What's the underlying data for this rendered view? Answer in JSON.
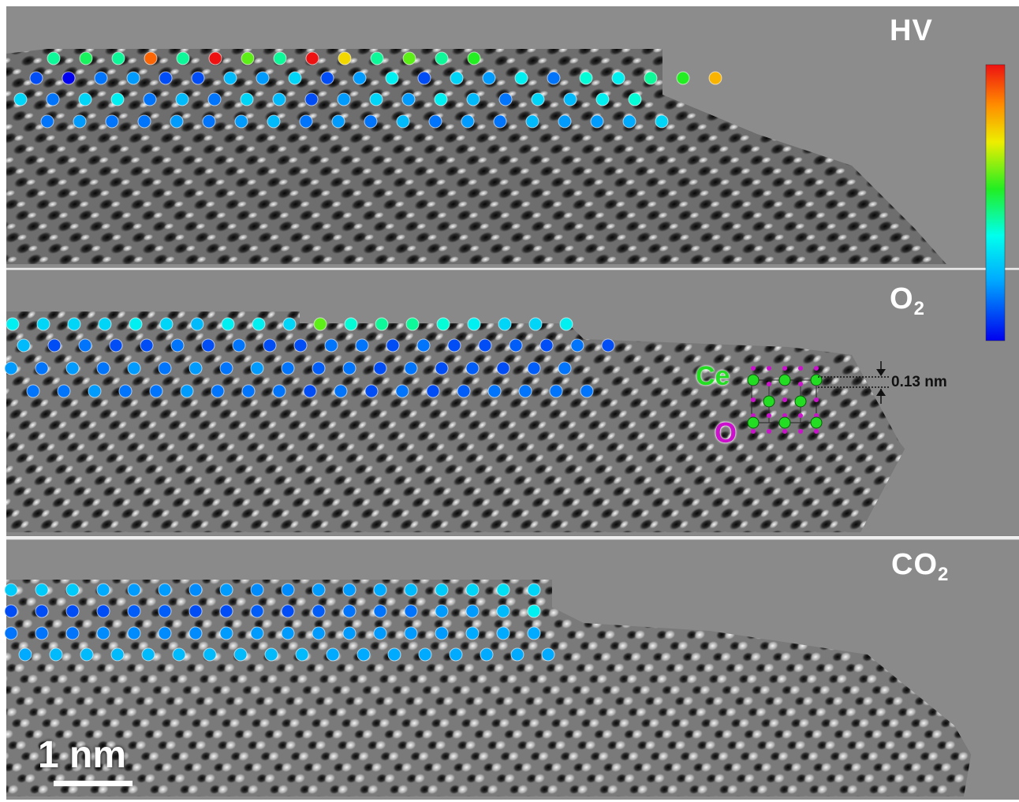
{
  "panels": [
    {
      "id": "hv",
      "label_main": "HV",
      "label_sub": ""
    },
    {
      "id": "o2",
      "label_main": "O",
      "label_sub": "2"
    },
    {
      "id": "co2",
      "label_main": "CO",
      "label_sub": "2"
    }
  ],
  "inset": {
    "ce_label": "Ce",
    "o_label": "O",
    "spacing_label": "0.13 nm"
  },
  "scale_bar": {
    "label": "1 nm"
  },
  "colors": {
    "background": "#8a8a8a",
    "ce_atom": "#22dd22",
    "o_atom": "#cc11cc",
    "colorbar_stops": [
      "#0000ee",
      "#00aaff",
      "#00ffee",
      "#22ee22",
      "#eeee00",
      "#ff8800",
      "#ee1111"
    ]
  },
  "surface_atoms": {
    "hv": [
      [
        0.45,
        0.5,
        0.45,
        0.9,
        0.45,
        1.0,
        0.6,
        0.45,
        1.0,
        0.75,
        0.45,
        0.6,
        0.45,
        0.55
      ],
      [
        0.1,
        0.0,
        0.15,
        0.2,
        0.1,
        0.1,
        0.25,
        0.2,
        0.3,
        0.1,
        0.2,
        0.35,
        0.1,
        0.3,
        0.2,
        0.35,
        0.15,
        0.4,
        0.35,
        0.45,
        0.55,
        0.8
      ],
      [
        0.3,
        0.15,
        0.3,
        0.35,
        0.15,
        0.25,
        0.15,
        0.3,
        0.25,
        0.1,
        0.2,
        0.3,
        0.2,
        0.35,
        0.25,
        0.15,
        0.3,
        0.25,
        0.35,
        0.4
      ],
      [
        0.15,
        0.2,
        0.15,
        0.15,
        0.2,
        0.15,
        0.2,
        0.25,
        0.15,
        0.2,
        0.15,
        0.25,
        0.15,
        0.2,
        0.15,
        0.25,
        0.2,
        0.2,
        0.22,
        0.3
      ]
    ],
    "o2": [
      [
        0.35,
        0.3,
        0.3,
        0.3,
        0.35,
        0.3,
        0.25,
        0.35,
        0.35,
        0.3,
        0.6,
        0.4,
        0.45,
        0.45,
        0.4,
        0.35,
        0.3,
        0.3,
        0.35
      ],
      [
        0.25,
        0.1,
        0.15,
        0.1,
        0.1,
        0.15,
        0.1,
        0.15,
        0.1,
        0.1,
        0.15,
        0.15,
        0.1,
        0.15,
        0.1,
        0.1,
        0.12,
        0.1,
        0.15,
        0.1
      ],
      [
        0.2,
        0.15,
        0.2,
        0.15,
        0.2,
        0.15,
        0.2,
        0.15,
        0.2,
        0.15,
        0.12,
        0.15,
        0.1,
        0.15,
        0.1,
        0.12,
        0.1,
        0.12,
        0.15
      ],
      [
        0.15,
        0.15,
        0.2,
        0.15,
        0.15,
        0.2,
        0.15,
        0.15,
        0.15,
        0.1,
        0.15,
        0.1,
        0.15,
        0.1,
        0.12,
        0.15,
        0.15,
        0.15,
        0.15
      ]
    ],
    "co2": [
      [
        0.28,
        0.28,
        0.28,
        0.22,
        0.2,
        0.2,
        0.18,
        0.2,
        0.18,
        0.18,
        0.2,
        0.2,
        0.22,
        0.25,
        0.28,
        0.3,
        0.32,
        0.3
      ],
      [
        0.1,
        0.1,
        0.1,
        0.1,
        0.12,
        0.12,
        0.1,
        0.1,
        0.12,
        0.1,
        0.12,
        0.15,
        0.15,
        0.15,
        0.2,
        0.2,
        0.25,
        0.35
      ],
      [
        0.15,
        0.15,
        0.15,
        0.18,
        0.18,
        0.18,
        0.18,
        0.2,
        0.2,
        0.2,
        0.2,
        0.2,
        0.2,
        0.2,
        0.2,
        0.22,
        0.22,
        0.22
      ],
      [
        0.22,
        0.25,
        0.25,
        0.25,
        0.25,
        0.25,
        0.25,
        0.25,
        0.25,
        0.25,
        0.22,
        0.22,
        0.22,
        0.22,
        0.22,
        0.22,
        0.22,
        0.22
      ]
    ]
  }
}
